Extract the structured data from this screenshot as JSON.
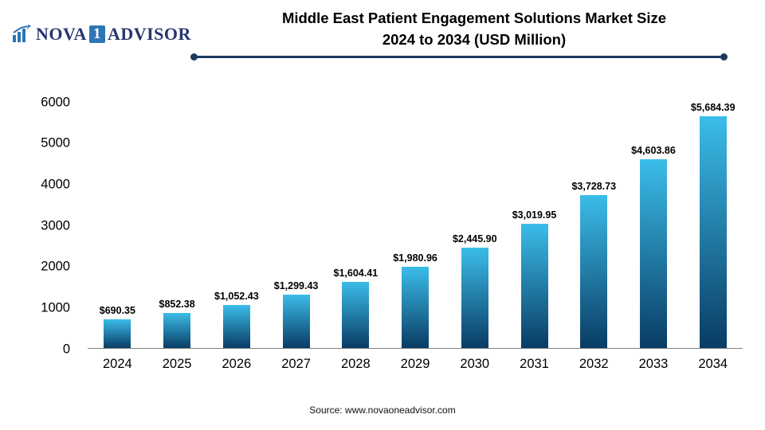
{
  "brand": {
    "name_part1": "NOVA",
    "name_part2": "1",
    "name_part3": "ADVISOR",
    "logo_icon": "bar-chart-icon",
    "accent_color": "#2e75b6",
    "navy_color": "#26356e"
  },
  "header": {
    "title_line1": "Middle East Patient Engagement Solutions Market Size",
    "title_line2": "2024 to 2034 (USD Million)"
  },
  "chart_data": {
    "type": "bar",
    "title": "Middle East Patient Engagement Solutions Market Size 2024 to 2034 (USD Million)",
    "categories": [
      "2024",
      "2025",
      "2026",
      "2027",
      "2028",
      "2029",
      "2030",
      "2031",
      "2032",
      "2033",
      "2034"
    ],
    "values": [
      690.35,
      852.38,
      1052.43,
      1299.43,
      1604.41,
      1980.96,
      2445.9,
      3019.95,
      3728.73,
      4603.86,
      5684.39
    ],
    "value_labels": [
      "$690.35",
      "$852.38",
      "$1,052.43",
      "$1,299.43",
      "$1,604.41",
      "$1,980.96",
      "$2,445.90",
      "$3,019.95",
      "$3,728.73",
      "$4,603.86",
      "$5,684.39"
    ],
    "xlabel": "",
    "ylabel": "",
    "ylim": [
      0,
      6000
    ],
    "yticks": [
      0,
      1000,
      2000,
      3000,
      4000,
      5000,
      6000
    ],
    "grid": false,
    "legend": "none",
    "bar_color_top": "#3bbde9",
    "bar_color_bottom": "#093c64"
  },
  "footer": {
    "source": "Source: www.novaoneadvisor.com"
  }
}
